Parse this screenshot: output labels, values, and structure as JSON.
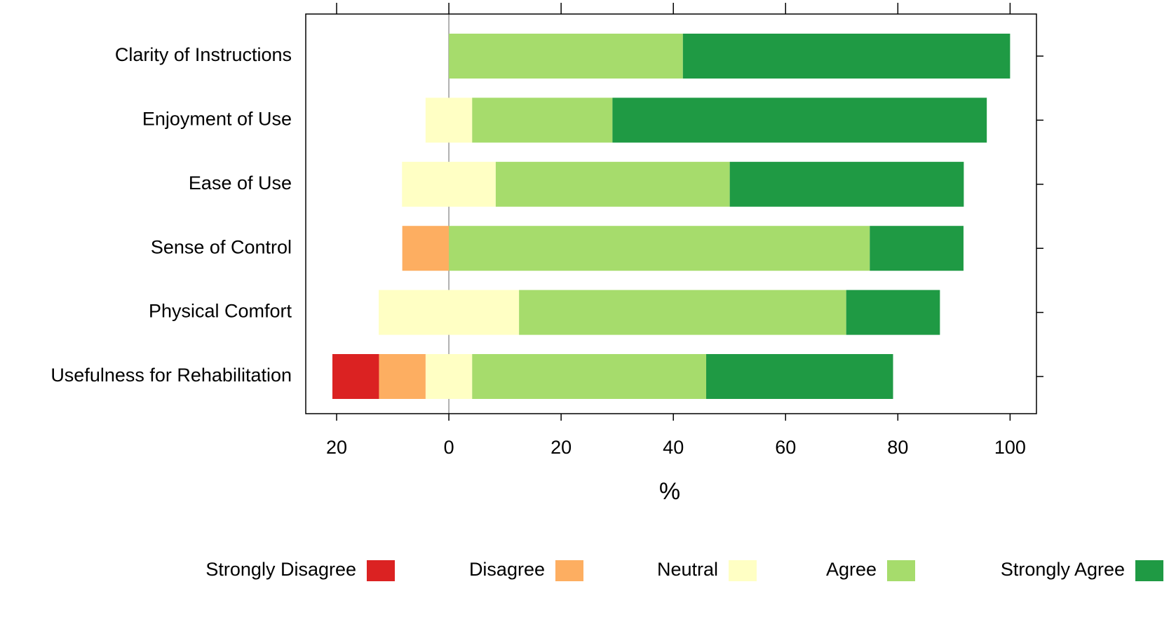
{
  "chart_data": {
    "type": "diverging-stacked-bar",
    "xlabel": "%",
    "categories": [
      "Clarity of Instructions",
      "Enjoyment of Use",
      "Ease of Use",
      "Sense of Control",
      "Physical Comfort",
      "Usefulness for Rehabilitation"
    ],
    "series": [
      {
        "name": "Strongly Disagree",
        "color": "#db2222",
        "values": [
          0,
          0,
          0,
          0,
          0,
          8.3
        ]
      },
      {
        "name": "Disagree",
        "color": "#fdae61",
        "values": [
          0,
          0,
          0,
          8.3,
          0,
          8.3
        ]
      },
      {
        "name": "Neutral",
        "color": "#ffffc4",
        "values": [
          0,
          8.3,
          16.7,
          0,
          25,
          8.3
        ]
      },
      {
        "name": "Agree",
        "color": "#a6dc6c",
        "values": [
          41.7,
          25,
          41.7,
          75,
          58.3,
          41.7
        ]
      },
      {
        "name": "Strongly Agree",
        "color": "#1f9a44",
        "values": [
          58.3,
          66.7,
          41.7,
          16.7,
          16.7,
          33.3
        ]
      }
    ],
    "xlim": [
      -25.5,
      104.7
    ],
    "xticks": [
      {
        "value": -20,
        "label": "20"
      },
      0,
      20,
      40,
      60,
      80,
      100
    ]
  }
}
